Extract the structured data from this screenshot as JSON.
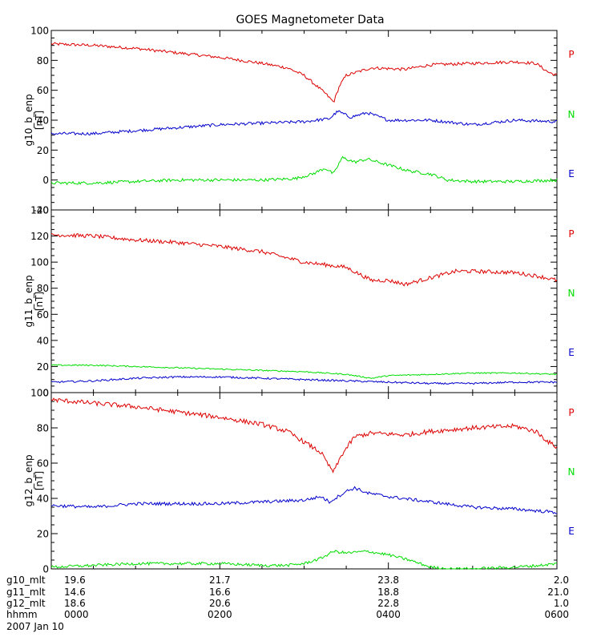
{
  "title": "GOES Magnetometer Data",
  "colors": {
    "P": "#dd0000",
    "N": "#00dd00",
    "E": "#0000cc",
    "axis": "#000000",
    "text": "#000000"
  },
  "footer": {
    "rows": [
      {
        "label": "g10_mlt",
        "values": [
          "19.6",
          "21.7",
          "23.8",
          "2.0"
        ]
      },
      {
        "label": "g11_mlt",
        "values": [
          "14.6",
          "16.6",
          "18.8",
          "21.0"
        ]
      },
      {
        "label": "g12_mlt",
        "values": [
          "18.6",
          "20.6",
          "22.8",
          "1.0"
        ]
      },
      {
        "label": "hhmm",
        "values": [
          "0000",
          "0200",
          "0400",
          "0600"
        ]
      }
    ],
    "date": "2007 Jan 10"
  },
  "chart_data": [
    {
      "type": "line",
      "ylabel": "g10_b_enp",
      "yunit": "[nT]",
      "ylim": [
        -20,
        100
      ],
      "yticks": [
        "-20",
        "0",
        "20",
        "40",
        "60",
        "80",
        "100"
      ],
      "xlim": [
        0,
        6
      ],
      "legend": [
        {
          "name": "P",
          "color": "P"
        },
        {
          "name": "N",
          "color": "N"
        },
        {
          "name": "E",
          "color": "E"
        }
      ],
      "series": [
        {
          "color": "P",
          "noise": 1.0,
          "points": [
            [
              0,
              91
            ],
            [
              0.5,
              90
            ],
            [
              1,
              88
            ],
            [
              1.5,
              85
            ],
            [
              2,
              82
            ],
            [
              2.5,
              78
            ],
            [
              2.8,
              75
            ],
            [
              3.0,
              70
            ],
            [
              3.25,
              58
            ],
            [
              3.35,
              52
            ],
            [
              3.42,
              63
            ],
            [
              3.5,
              70
            ],
            [
              3.8,
              75
            ],
            [
              4.2,
              74
            ],
            [
              4.5,
              77
            ],
            [
              5.0,
              78
            ],
            [
              5.5,
              79
            ],
            [
              5.75,
              78
            ],
            [
              5.9,
              72
            ],
            [
              6,
              70
            ]
          ]
        },
        {
          "color": "E",
          "noise": 1.0,
          "points": [
            [
              0,
              31
            ],
            [
              0.5,
              31
            ],
            [
              1,
              33
            ],
            [
              1.5,
              35
            ],
            [
              2,
              37
            ],
            [
              2.5,
              38
            ],
            [
              3.0,
              39
            ],
            [
              3.3,
              41
            ],
            [
              3.4,
              46
            ],
            [
              3.55,
              42
            ],
            [
              3.75,
              45
            ],
            [
              4.0,
              40
            ],
            [
              4.5,
              40
            ],
            [
              5.0,
              37
            ],
            [
              5.5,
              40
            ],
            [
              6,
              39
            ]
          ]
        },
        {
          "color": "N",
          "noise": 1.0,
          "points": [
            [
              0,
              -2
            ],
            [
              0.5,
              -2
            ],
            [
              1,
              -1
            ],
            [
              1.5,
              0
            ],
            [
              2,
              0
            ],
            [
              2.5,
              0
            ],
            [
              2.9,
              1
            ],
            [
              3.1,
              4
            ],
            [
              3.25,
              8
            ],
            [
              3.35,
              4
            ],
            [
              3.45,
              15
            ],
            [
              3.6,
              12
            ],
            [
              3.75,
              14
            ],
            [
              4.0,
              10
            ],
            [
              4.25,
              6
            ],
            [
              4.5,
              4
            ],
            [
              4.7,
              0
            ],
            [
              5.0,
              -1
            ],
            [
              5.5,
              -1
            ],
            [
              6,
              0
            ]
          ]
        }
      ]
    },
    {
      "type": "line",
      "ylabel": "g11_b_enp",
      "yunit": "[nT]",
      "ylim": [
        0,
        140
      ],
      "yticks": [
        "0",
        "20",
        "40",
        "60",
        "80",
        "100",
        "120",
        "140"
      ],
      "xlim": [
        0,
        6
      ],
      "legend": [
        {
          "name": "P",
          "color": "P"
        },
        {
          "name": "N",
          "color": "N"
        },
        {
          "name": "E",
          "color": "E"
        }
      ],
      "series": [
        {
          "color": "P",
          "noise": 1.5,
          "points": [
            [
              0,
              121
            ],
            [
              0.5,
              120
            ],
            [
              1,
              117
            ],
            [
              1.5,
              115
            ],
            [
              2,
              112
            ],
            [
              2.5,
              108
            ],
            [
              3.0,
              100
            ],
            [
              3.5,
              96
            ],
            [
              3.8,
              86
            ],
            [
              4.0,
              86
            ],
            [
              4.2,
              83
            ],
            [
              4.5,
              88
            ],
            [
              4.8,
              93
            ],
            [
              5.0,
              93
            ],
            [
              5.5,
              92
            ],
            [
              5.8,
              89
            ],
            [
              6,
              86
            ]
          ]
        },
        {
          "color": "N",
          "noise": 0.5,
          "points": [
            [
              0,
              21
            ],
            [
              0.5,
              21
            ],
            [
              1,
              20
            ],
            [
              1.5,
              19
            ],
            [
              2,
              18
            ],
            [
              2.5,
              17
            ],
            [
              3.0,
              16
            ],
            [
              3.5,
              14
            ],
            [
              3.8,
              11
            ],
            [
              4.0,
              13
            ],
            [
              4.5,
              14
            ],
            [
              5.0,
              15
            ],
            [
              5.5,
              15
            ],
            [
              6,
              14
            ]
          ]
        },
        {
          "color": "E",
          "noise": 0.7,
          "points": [
            [
              0,
              8
            ],
            [
              0.5,
              9
            ],
            [
              1,
              11
            ],
            [
              1.5,
              12
            ],
            [
              2,
              12
            ],
            [
              2.5,
              11
            ],
            [
              3.0,
              10
            ],
            [
              3.5,
              9
            ],
            [
              4.0,
              8
            ],
            [
              4.5,
              7
            ],
            [
              5.0,
              7
            ],
            [
              5.5,
              8
            ],
            [
              6,
              8
            ]
          ]
        }
      ]
    },
    {
      "type": "line",
      "ylabel": "g12_b_enp",
      "yunit": "[nT]",
      "ylim": [
        0,
        100
      ],
      "yticks": [
        "0",
        "20",
        "40",
        "60",
        "80",
        "100"
      ],
      "xlim": [
        0,
        6
      ],
      "legend": [
        {
          "name": "P",
          "color": "P"
        },
        {
          "name": "N",
          "color": "N"
        },
        {
          "name": "E",
          "color": "E"
        }
      ],
      "series": [
        {
          "color": "P",
          "noise": 1.3,
          "points": [
            [
              0,
              96
            ],
            [
              0.5,
              94
            ],
            [
              1,
              92
            ],
            [
              1.5,
              89
            ],
            [
              2,
              86
            ],
            [
              2.5,
              82
            ],
            [
              2.8,
              78
            ],
            [
              3.0,
              72
            ],
            [
              3.2,
              66
            ],
            [
              3.3,
              58
            ],
            [
              3.35,
              55
            ],
            [
              3.45,
              65
            ],
            [
              3.6,
              75
            ],
            [
              3.8,
              77
            ],
            [
              4.2,
              76
            ],
            [
              4.5,
              78
            ],
            [
              5.0,
              80
            ],
            [
              5.5,
              81
            ],
            [
              5.75,
              78
            ],
            [
              5.9,
              72
            ],
            [
              6,
              69
            ]
          ]
        },
        {
          "color": "E",
          "noise": 0.9,
          "points": [
            [
              0,
              36
            ],
            [
              0.5,
              35
            ],
            [
              1,
              37
            ],
            [
              1.5,
              37
            ],
            [
              2,
              37
            ],
            [
              2.5,
              38
            ],
            [
              3.0,
              39
            ],
            [
              3.2,
              41
            ],
            [
              3.3,
              38
            ],
            [
              3.5,
              44
            ],
            [
              3.6,
              46
            ],
            [
              3.75,
              43
            ],
            [
              4.0,
              41
            ],
            [
              4.5,
              38
            ],
            [
              5.0,
              35
            ],
            [
              5.5,
              34
            ],
            [
              6,
              32
            ]
          ]
        },
        {
          "color": "N",
          "noise": 0.8,
          "points": [
            [
              0,
              1
            ],
            [
              0.5,
              2
            ],
            [
              1,
              3
            ],
            [
              1.5,
              3
            ],
            [
              2,
              3
            ],
            [
              2.5,
              2
            ],
            [
              2.8,
              2
            ],
            [
              3.0,
              3
            ],
            [
              3.2,
              6
            ],
            [
              3.35,
              10
            ],
            [
              3.5,
              9
            ],
            [
              3.75,
              10
            ],
            [
              4.0,
              8
            ],
            [
              4.25,
              5
            ],
            [
              4.5,
              1
            ],
            [
              4.7,
              0
            ],
            [
              5.0,
              0
            ],
            [
              5.5,
              1
            ],
            [
              5.8,
              2
            ],
            [
              6,
              3
            ]
          ]
        }
      ]
    }
  ]
}
